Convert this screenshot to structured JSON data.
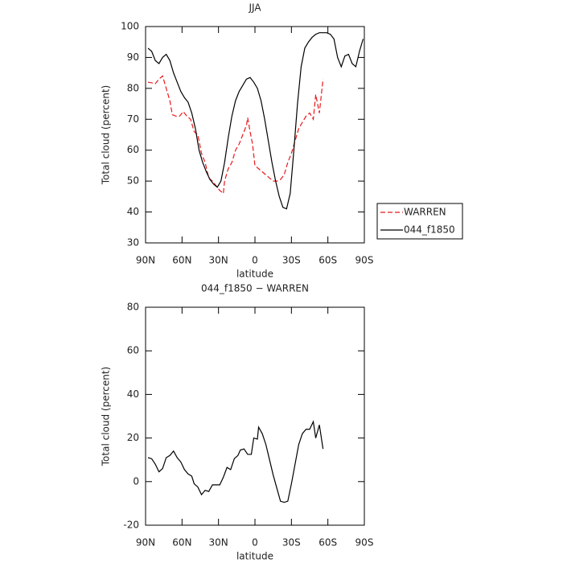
{
  "chart_data": [
    {
      "type": "line",
      "title": "JJA",
      "xlabel": "latitude",
      "ylabel": "Total cloud (percent)",
      "xlim": [
        90,
        -90
      ],
      "ylim": [
        30,
        100
      ],
      "xticks": [
        {
          "value": 90,
          "label": "90N"
        },
        {
          "value": 60,
          "label": "60N"
        },
        {
          "value": 30,
          "label": "30N"
        },
        0,
        {
          "value": -30,
          "label": "30S"
        },
        {
          "value": -60,
          "label": "60S"
        },
        {
          "value": -90,
          "label": "90S"
        }
      ],
      "yticks": [
        30,
        40,
        50,
        60,
        70,
        80,
        90,
        100
      ],
      "legend": "right",
      "series": [
        {
          "name": "WARREN",
          "color": "#e8191b",
          "linestyle": "dashed",
          "x": [
            88,
            85,
            82,
            79,
            76,
            73,
            70,
            68,
            65,
            62,
            59,
            56,
            53,
            50,
            47,
            44,
            41,
            38,
            35,
            32,
            29,
            26,
            25,
            22,
            19,
            16,
            13,
            10,
            7,
            6,
            4,
            2,
            0,
            -3,
            -6,
            -9,
            -12,
            -15,
            -18,
            -21,
            -24,
            -27,
            -30,
            -33,
            -36,
            -39,
            -42,
            -45,
            -48,
            -50,
            -53,
            -56
          ],
          "values": [
            82,
            81.8,
            81.5,
            83,
            84,
            80,
            76,
            71.5,
            71,
            71,
            72.5,
            71,
            70,
            66,
            65,
            59,
            56,
            51,
            50,
            48.5,
            47,
            46,
            50,
            54,
            56,
            60,
            62,
            65,
            68,
            70.5,
            66,
            62,
            55,
            54,
            53,
            52,
            51,
            50,
            50,
            50.5,
            52,
            56,
            59,
            63,
            67,
            69,
            71,
            72,
            70,
            78,
            72,
            83
          ]
        },
        {
          "name": "044_f1850",
          "color": "#000000",
          "linestyle": "solid",
          "x": [
            88,
            85,
            82,
            79,
            76,
            73,
            70,
            67,
            64,
            61,
            58,
            55,
            52,
            49,
            46,
            43,
            40,
            37,
            34,
            31,
            28,
            25,
            22,
            19,
            16,
            13,
            10,
            7,
            4,
            1,
            -2,
            -5,
            -8,
            -11,
            -14,
            -17,
            -20,
            -23,
            -26,
            -29,
            -32,
            -35,
            -38,
            -41,
            -44,
            -47,
            -50,
            -53,
            -56,
            -59,
            -62,
            -65,
            -68,
            -71,
            -74,
            -77,
            -80,
            -83,
            -86,
            -89
          ],
          "values": [
            93,
            92,
            89,
            88,
            90,
            91,
            89,
            85,
            82,
            79,
            77,
            75.5,
            72,
            67,
            60,
            56,
            53,
            50.5,
            49,
            48,
            50,
            56,
            64,
            71,
            76,
            79,
            81,
            83,
            83.5,
            82,
            80,
            76,
            70,
            63,
            56,
            50,
            45,
            41.5,
            41,
            46,
            60,
            75,
            87,
            93,
            95,
            96.5,
            97.5,
            98,
            98,
            98,
            97.5,
            96,
            90,
            87,
            90.5,
            91,
            88,
            87,
            92,
            96
          ]
        }
      ]
    },
    {
      "type": "line",
      "title": "044_f1850 − WARREN",
      "xlabel": "latitude",
      "ylabel": "Total cloud (percent)",
      "xlim": [
        90,
        -90
      ],
      "ylim": [
        -20,
        80
      ],
      "xticks": [
        {
          "value": 90,
          "label": "90N"
        },
        {
          "value": 60,
          "label": "60N"
        },
        {
          "value": 30,
          "label": "30N"
        },
        0,
        {
          "value": -30,
          "label": "30S"
        },
        {
          "value": -60,
          "label": "60S"
        },
        {
          "value": -90,
          "label": "90S"
        }
      ],
      "yticks": [
        -20,
        0,
        20,
        40,
        60,
        80
      ],
      "series": [
        {
          "color": "#000000",
          "linestyle": "solid",
          "x": [
            88,
            85,
            82,
            79,
            76,
            73,
            70,
            67,
            64,
            61,
            58,
            55,
            52,
            50,
            47,
            44,
            41,
            38,
            35,
            32,
            29,
            26,
            23,
            20,
            17,
            14,
            12,
            9,
            6,
            3,
            1,
            -2,
            -3,
            -6,
            -9,
            -12,
            -15,
            -18,
            -21,
            -24,
            -27,
            -30,
            -33,
            -36,
            -39,
            -42,
            -45,
            -48,
            -50,
            -53,
            -56
          ],
          "values": [
            11,
            10.5,
            8,
            4.5,
            6,
            11,
            12,
            14,
            11,
            9,
            5.5,
            3.5,
            2.5,
            -1,
            -2.5,
            -6,
            -4,
            -4.5,
            -1.5,
            -1.5,
            -1.5,
            2,
            6.5,
            5.5,
            10.5,
            12,
            14.5,
            15,
            12.5,
            12.5,
            20,
            19.5,
            25,
            22,
            17,
            10,
            3,
            -3,
            -9,
            -9.5,
            -9,
            -1,
            8,
            17,
            22,
            24,
            24,
            27.5,
            20,
            26,
            15
          ]
        }
      ]
    }
  ]
}
